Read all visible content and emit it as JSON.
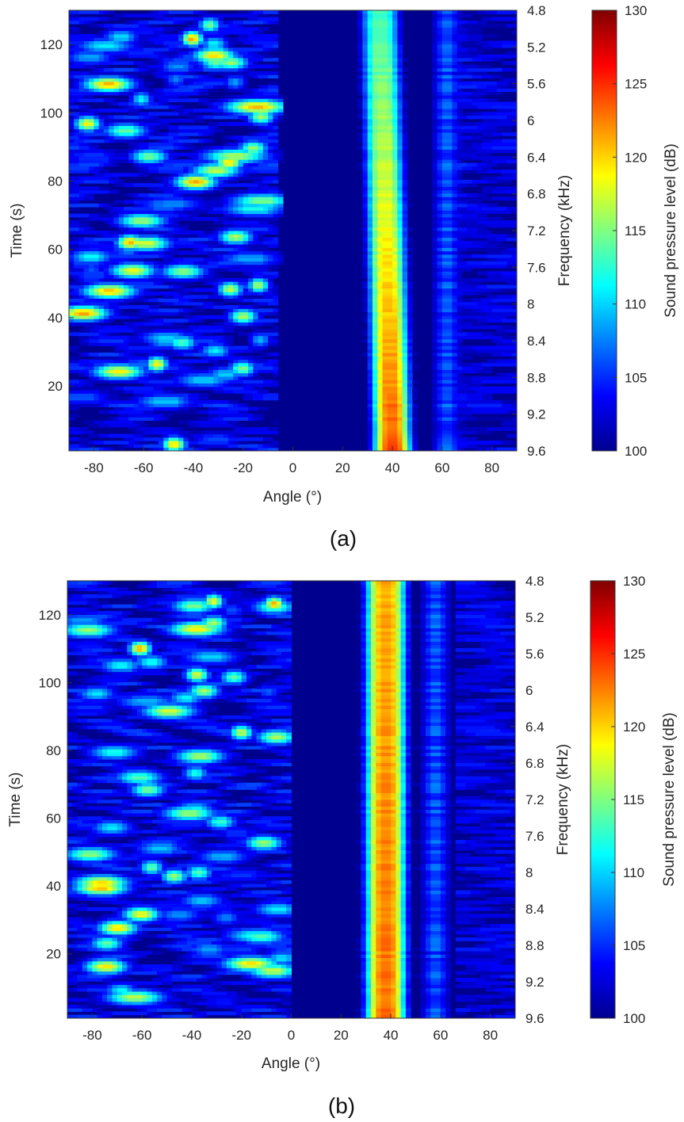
{
  "chart_data": [
    {
      "type": "heatmap",
      "panel_label": "(a)",
      "xlabel": "Angle (°)",
      "ylabel": "Time (s)",
      "ylabel_right": "Frequency (kHz)",
      "colorbar_label": "Sound pressure level (dB)",
      "xlim": [
        -90,
        90
      ],
      "ylim": [
        1,
        130
      ],
      "x_ticks": [
        -80,
        -60,
        -40,
        -20,
        0,
        20,
        40,
        60,
        80
      ],
      "y_ticks": [
        20,
        40,
        60,
        80,
        100,
        120
      ],
      "right_ticks": [
        "4.8",
        "5.2",
        "5.6",
        "6",
        "6.4",
        "6.8",
        "7.2",
        "7.6",
        "8",
        "8.4",
        "8.8",
        "9.2",
        "9.6"
      ],
      "color_range": [
        100,
        130
      ],
      "colorbar_ticks": [
        100,
        105,
        110,
        115,
        120,
        125,
        130
      ],
      "colormap": "jet",
      "features": {
        "quiet_band_deg": [
          -5,
          25
        ],
        "main_source": {
          "angle_start_deg": 40,
          "angle_end_deg": 35,
          "width_deg": 12,
          "peak_db_start": 125,
          "peak_db_end": 114
        },
        "left_scatter": {
          "angle_range_deg": [
            -90,
            -10
          ],
          "level_db": "105-125"
        },
        "right_shoulder": {
          "angle_deg": 62,
          "level_db": "104-110"
        }
      }
    },
    {
      "type": "heatmap",
      "panel_label": "(b)",
      "xlabel": "Angle (°)",
      "ylabel": "Time (s)",
      "ylabel_right": "Frequency (kHz)",
      "colorbar_label": "Sound pressure level (dB)",
      "xlim": [
        -90,
        90
      ],
      "ylim": [
        1,
        130
      ],
      "x_ticks": [
        -80,
        -60,
        -40,
        -20,
        0,
        20,
        40,
        60,
        80
      ],
      "y_ticks": [
        20,
        40,
        60,
        80,
        100,
        120
      ],
      "right_ticks": [
        "4.8",
        "5.2",
        "5.6",
        "6",
        "6.4",
        "6.8",
        "7.2",
        "7.6",
        "8",
        "8.4",
        "8.8",
        "9.2",
        "9.6"
      ],
      "color_range": [
        100,
        130
      ],
      "colorbar_ticks": [
        100,
        105,
        110,
        115,
        120,
        125,
        130
      ],
      "colormap": "jet",
      "features": {
        "quiet_band_deg": [
          0,
          25
        ],
        "main_source": {
          "angle_start_deg": 38,
          "angle_end_deg": 38,
          "width_deg": 13,
          "peak_db_start": 124,
          "peak_db_end": 122
        },
        "left_scatter": {
          "angle_range_deg": [
            -85,
            -5
          ],
          "level_db": "103-122"
        },
        "right_shoulder": {
          "angle_deg": 58,
          "level_db": "104-108"
        }
      }
    }
  ]
}
